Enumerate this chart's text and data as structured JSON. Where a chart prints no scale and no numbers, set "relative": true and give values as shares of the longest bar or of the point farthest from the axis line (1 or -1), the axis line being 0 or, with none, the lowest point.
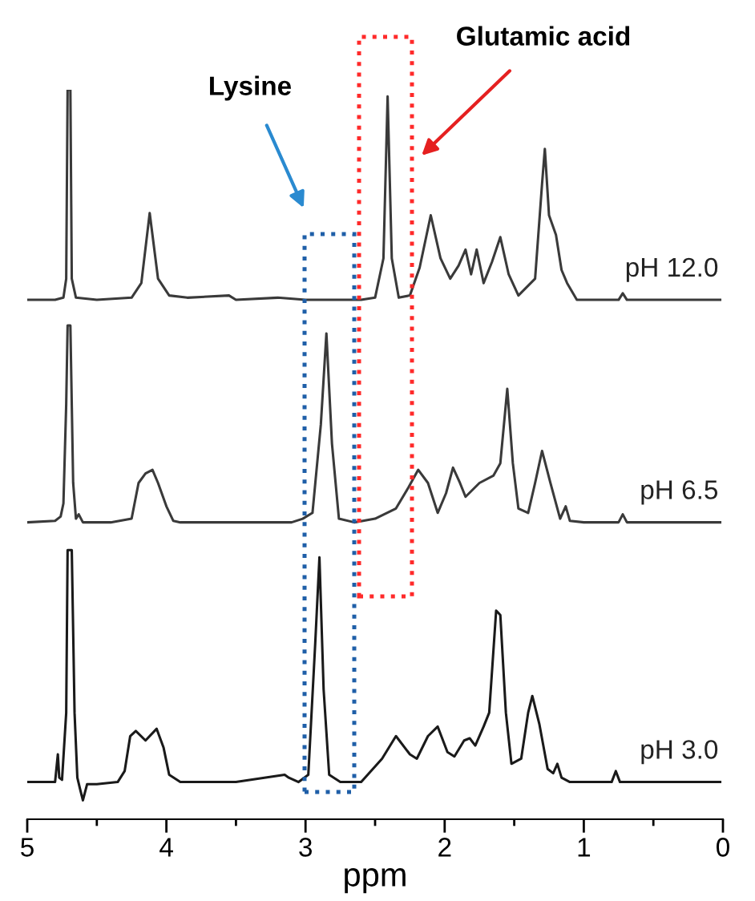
{
  "chart_data": {
    "type": "line",
    "relative": true,
    "xlim": [
      5,
      0
    ],
    "xlabel": "ppm",
    "xticks": [
      5,
      {
        "value": 4.5,
        "label": null
      },
      4,
      {
        "value": 3.5,
        "label": null
      },
      3,
      {
        "value": 2.5,
        "label": null
      },
      2,
      {
        "value": 1.5,
        "label": null
      },
      1,
      {
        "value": 0.5,
        "label": null
      },
      0
    ],
    "annotations": [
      "Lysine",
      "Glutamic acid"
    ],
    "series": [
      {
        "name": "pH 12.0",
        "color": "#3a3a3a",
        "x": [
          5.0,
          4.8,
          4.74,
          4.72,
          4.71,
          4.69,
          4.68,
          4.65,
          4.5,
          4.25,
          4.18,
          4.12,
          4.06,
          3.98,
          3.85,
          3.55,
          3.5,
          3.2,
          3.0,
          2.6,
          2.5,
          2.44,
          2.41,
          2.38,
          2.33,
          2.25,
          2.18,
          2.1,
          2.03,
          1.96,
          1.9,
          1.85,
          1.81,
          1.77,
          1.72,
          1.66,
          1.6,
          1.54,
          1.47,
          1.35,
          1.3,
          1.28,
          1.25,
          1.2,
          1.16,
          1.12,
          1.05,
          0.75,
          0.72,
          0.69,
          0.02
        ],
        "values": [
          0.712,
          0.712,
          0.715,
          0.741,
          1,
          1,
          0.741,
          0.715,
          0.712,
          0.715,
          0.735,
          0.831,
          0.741,
          0.718,
          0.715,
          0.718,
          0.712,
          0.715,
          0.712,
          0.712,
          0.715,
          0.769,
          0.991,
          0.769,
          0.715,
          0.718,
          0.756,
          0.828,
          0.769,
          0.741,
          0.759,
          0.781,
          0.747,
          0.781,
          0.735,
          0.764,
          0.798,
          0.747,
          0.718,
          0.741,
          0.871,
          0.919,
          0.828,
          0.801,
          0.753,
          0.735,
          0.712,
          0.712,
          0.721,
          0.712,
          0.712
        ]
      },
      {
        "name": "pH 6.5",
        "color": "#3a3a3a",
        "x": [
          5.0,
          4.8,
          4.76,
          4.74,
          4.72,
          4.71,
          4.69,
          4.67,
          4.65,
          4.63,
          4.6,
          4.4,
          4.25,
          4.2,
          4.15,
          4.1,
          4.06,
          4.0,
          3.95,
          3.9,
          3.6,
          3.1,
          3.02,
          2.95,
          2.89,
          2.85,
          2.81,
          2.76,
          2.65,
          2.5,
          2.35,
          2.26,
          2.19,
          2.12,
          2.05,
          1.99,
          1.94,
          1.89,
          1.85,
          1.75,
          1.65,
          1.6,
          1.55,
          1.51,
          1.47,
          1.4,
          1.35,
          1.3,
          1.24,
          1.17,
          1.13,
          1.1,
          1.0,
          0.75,
          0.72,
          0.69,
          0.02
        ],
        "values": [
          0.407,
          0.409,
          0.415,
          0.433,
          0.569,
          0.677,
          0.677,
          0.461,
          0.412,
          0.418,
          0.407,
          0.407,
          0.412,
          0.461,
          0.474,
          0.479,
          0.461,
          0.429,
          0.409,
          0.407,
          0.407,
          0.407,
          0.412,
          0.42,
          0.541,
          0.666,
          0.515,
          0.412,
          0.407,
          0.412,
          0.426,
          0.455,
          0.479,
          0.461,
          0.42,
          0.447,
          0.482,
          0.461,
          0.442,
          0.461,
          0.471,
          0.488,
          0.59,
          0.488,
          0.426,
          0.42,
          0.461,
          0.505,
          0.461,
          0.412,
          0.429,
          0.409,
          0.407,
          0.407,
          0.418,
          0.407,
          0.407
        ]
      },
      {
        "name": "pH 3.0",
        "color": "#1a1a1a",
        "x": [
          5.0,
          4.8,
          4.78,
          4.77,
          4.75,
          4.72,
          4.71,
          4.68,
          4.66,
          4.64,
          4.62,
          4.6,
          4.57,
          4.5,
          4.35,
          4.3,
          4.26,
          4.22,
          4.15,
          4.07,
          4.02,
          3.98,
          3.9,
          3.5,
          3.15,
          3.12,
          3.05,
          2.98,
          2.93,
          2.9,
          2.87,
          2.83,
          2.75,
          2.6,
          2.45,
          2.35,
          2.25,
          2.2,
          2.12,
          2.05,
          1.98,
          1.93,
          1.86,
          1.82,
          1.78,
          1.72,
          1.68,
          1.63,
          1.6,
          1.56,
          1.52,
          1.45,
          1.4,
          1.37,
          1.32,
          1.26,
          1.22,
          1.19,
          1.16,
          1.1,
          0.8,
          0.77,
          0.74,
          0.02
        ],
        "values": [
          0.051,
          0.051,
          0.089,
          0.057,
          0.054,
          0.146,
          0.369,
          0.369,
          0.146,
          0.057,
          0.041,
          0.026,
          0.048,
          0.048,
          0.051,
          0.066,
          0.114,
          0.121,
          0.108,
          0.124,
          0.098,
          0.061,
          0.051,
          0.051,
          0.061,
          0.057,
          0.051,
          0.061,
          0.242,
          0.359,
          0.178,
          0.061,
          0.051,
          0.051,
          0.083,
          0.114,
          0.089,
          0.083,
          0.114,
          0.127,
          0.092,
          0.086,
          0.108,
          0.111,
          0.101,
          0.127,
          0.146,
          0.286,
          0.28,
          0.146,
          0.076,
          0.083,
          0.146,
          0.169,
          0.131,
          0.069,
          0.063,
          0.076,
          0.057,
          0.051,
          0.051,
          0.066,
          0.051,
          0.051
        ]
      }
    ]
  }
}
